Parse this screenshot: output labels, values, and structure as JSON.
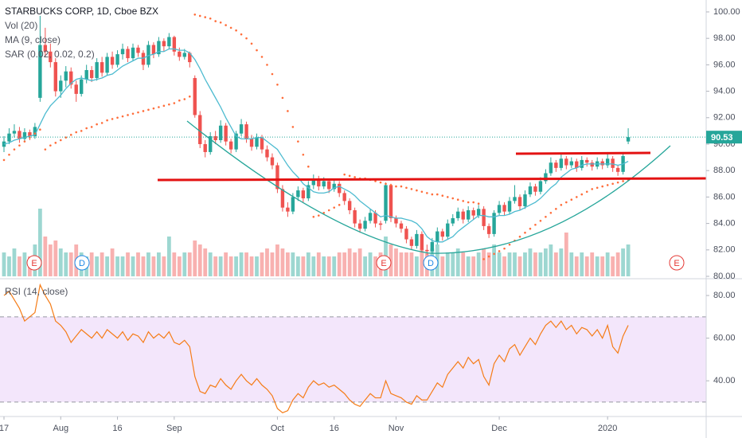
{
  "chart_data": {
    "type": "candlestick",
    "title": "STARBUCKS CORP, 1D, Cboe BZX",
    "indicators": [
      "Vol (20)",
      "MA (9, close)",
      "SAR (0.02, 0.02, 0.2)"
    ],
    "colors": {
      "up": "#26a69a",
      "down": "#ef5350",
      "ma": "#4dbbd0",
      "sar": "#ff6d3a",
      "rsi": "#f57c17",
      "band": "#f3e6fb"
    },
    "categories": [
      "17",
      null,
      null,
      null,
      null,
      null,
      null,
      null,
      null,
      null,
      null,
      "Aug",
      null,
      null,
      null,
      null,
      null,
      null,
      null,
      null,
      null,
      null,
      "16",
      null,
      null,
      null,
      null,
      null,
      null,
      null,
      null,
      null,
      null,
      "Sep",
      null,
      null,
      null,
      null,
      null,
      null,
      null,
      null,
      null,
      null,
      null,
      null,
      null,
      null,
      null,
      null,
      null,
      null,
      null,
      "Oct",
      null,
      null,
      null,
      null,
      null,
      null,
      null,
      null,
      null,
      null,
      "16",
      null,
      null,
      null,
      null,
      null,
      null,
      null,
      null,
      null,
      null,
      null,
      "Nov",
      null,
      null,
      null,
      null,
      null,
      null,
      null,
      null,
      null,
      null,
      null,
      null,
      null,
      null,
      null,
      null,
      null,
      null,
      null,
      "Dec",
      null,
      null,
      null,
      null,
      null,
      null,
      null,
      null,
      null,
      null,
      null,
      null,
      null,
      null,
      null,
      null,
      null,
      null,
      null,
      null,
      "2020",
      null,
      null,
      null,
      null
    ],
    "ohlc": [
      [
        89.8,
        90.6,
        89.4,
        90.2
      ],
      [
        90.2,
        91.2,
        90.0,
        90.8
      ],
      [
        90.8,
        91.5,
        90.5,
        91.0
      ],
      [
        91.0,
        91.3,
        90.1,
        90.4
      ],
      [
        90.4,
        91.2,
        90.2,
        90.9
      ],
      [
        90.9,
        91.1,
        90.3,
        90.6
      ],
      [
        90.6,
        91.6,
        90.4,
        91.3
      ],
      [
        93.5,
        99.7,
        93.2,
        97.5
      ],
      [
        97.5,
        98.8,
        96.6,
        97.0
      ],
      [
        97.0,
        97.6,
        95.8,
        96.2
      ],
      [
        96.2,
        96.5,
        93.6,
        94.0
      ],
      [
        94.0,
        95.2,
        93.5,
        94.8
      ],
      [
        94.8,
        95.9,
        94.3,
        95.5
      ],
      [
        95.5,
        95.8,
        94.2,
        94.5
      ],
      [
        94.5,
        94.8,
        93.2,
        93.8
      ],
      [
        93.8,
        95.2,
        93.6,
        94.9
      ],
      [
        94.9,
        96.0,
        94.6,
        95.6
      ],
      [
        95.6,
        95.9,
        94.7,
        95.0
      ],
      [
        95.0,
        96.5,
        94.8,
        96.2
      ],
      [
        96.2,
        96.6,
        95.1,
        95.4
      ],
      [
        95.4,
        96.9,
        95.2,
        96.6
      ],
      [
        96.6,
        97.0,
        95.7,
        96.0
      ],
      [
        96.0,
        97.1,
        95.8,
        96.8
      ],
      [
        96.8,
        97.6,
        96.4,
        97.2
      ],
      [
        97.2,
        97.4,
        96.2,
        96.5
      ],
      [
        96.5,
        97.6,
        96.3,
        97.3
      ],
      [
        97.3,
        97.5,
        96.6,
        96.9
      ],
      [
        96.9,
        97.1,
        95.6,
        96.0
      ],
      [
        96.0,
        97.8,
        95.8,
        97.5
      ],
      [
        97.5,
        97.7,
        96.5,
        96.8
      ],
      [
        96.8,
        98.1,
        96.6,
        97.8
      ],
      [
        97.8,
        98.0,
        97.0,
        97.4
      ],
      [
        97.4,
        98.4,
        97.2,
        98.1
      ],
      [
        98.1,
        98.2,
        96.7,
        97.0
      ],
      [
        97.0,
        97.3,
        96.3,
        96.6
      ],
      [
        96.6,
        97.2,
        96.4,
        96.9
      ],
      [
        96.9,
        97.0,
        95.8,
        96.2
      ],
      [
        95.0,
        95.2,
        92.0,
        92.2
      ],
      [
        92.2,
        92.5,
        89.7,
        90.0
      ],
      [
        90.0,
        90.3,
        89.0,
        89.4
      ],
      [
        89.4,
        90.9,
        89.2,
        90.6
      ],
      [
        90.6,
        91.0,
        90.0,
        90.3
      ],
      [
        90.3,
        91.8,
        90.1,
        91.4
      ],
      [
        91.4,
        91.6,
        89.9,
        90.2
      ],
      [
        90.2,
        90.4,
        89.3,
        89.6
      ],
      [
        89.6,
        91.0,
        89.4,
        90.8
      ],
      [
        90.8,
        91.9,
        90.6,
        91.5
      ],
      [
        91.5,
        91.7,
        90.1,
        90.4
      ],
      [
        90.4,
        90.7,
        89.5,
        89.8
      ],
      [
        89.8,
        90.8,
        89.6,
        90.5
      ],
      [
        90.5,
        90.7,
        89.3,
        89.6
      ],
      [
        89.6,
        89.9,
        88.7,
        89.0
      ],
      [
        89.0,
        89.3,
        88.1,
        88.4
      ],
      [
        88.4,
        88.6,
        86.3,
        86.6
      ],
      [
        86.6,
        86.9,
        84.9,
        85.2
      ],
      [
        85.2,
        85.6,
        84.5,
        84.9
      ],
      [
        84.9,
        86.3,
        84.7,
        86.0
      ],
      [
        86.0,
        86.8,
        85.7,
        86.5
      ],
      [
        86.5,
        86.7,
        85.6,
        85.9
      ],
      [
        85.9,
        87.2,
        85.7,
        86.9
      ],
      [
        86.9,
        87.7,
        86.6,
        87.4
      ],
      [
        87.4,
        87.6,
        86.5,
        86.8
      ],
      [
        86.8,
        87.5,
        86.6,
        87.2
      ],
      [
        87.2,
        87.4,
        86.3,
        86.6
      ],
      [
        86.6,
        87.3,
        86.4,
        87.0
      ],
      [
        87.0,
        87.2,
        86.0,
        86.3
      ],
      [
        86.3,
        86.5,
        85.4,
        85.7
      ],
      [
        85.7,
        85.9,
        84.7,
        85.0
      ],
      [
        85.0,
        85.2,
        83.7,
        84.0
      ],
      [
        84.0,
        84.3,
        83.3,
        83.6
      ],
      [
        83.6,
        84.5,
        83.4,
        84.2
      ],
      [
        84.2,
        85.1,
        84.0,
        84.8
      ],
      [
        84.8,
        85.0,
        83.7,
        84.0
      ],
      [
        84.0,
        84.2,
        83.5,
        83.9
      ],
      [
        84.2,
        87.1,
        84.0,
        86.9
      ],
      [
        86.9,
        87.0,
        84.1,
        84.4
      ],
      [
        84.4,
        84.6,
        83.7,
        84.0
      ],
      [
        84.0,
        84.2,
        83.3,
        83.6
      ],
      [
        83.6,
        83.8,
        82.5,
        82.8
      ],
      [
        82.8,
        83.0,
        82.0,
        82.3
      ],
      [
        82.3,
        83.5,
        82.1,
        83.2
      ],
      [
        83.2,
        83.4,
        81.8,
        82.0
      ],
      [
        82.0,
        82.4,
        81.6,
        81.9
      ],
      [
        81.9,
        82.9,
        81.7,
        82.6
      ],
      [
        82.6,
        83.7,
        82.4,
        83.4
      ],
      [
        83.4,
        83.6,
        82.7,
        83.0
      ],
      [
        83.0,
        84.3,
        82.8,
        84.0
      ],
      [
        84.0,
        84.7,
        83.8,
        84.4
      ],
      [
        84.4,
        85.2,
        84.2,
        84.9
      ],
      [
        84.9,
        85.1,
        84.0,
        84.3
      ],
      [
        84.3,
        85.3,
        84.1,
        85.0
      ],
      [
        85.0,
        85.2,
        84.3,
        84.6
      ],
      [
        84.6,
        85.4,
        84.4,
        85.1
      ],
      [
        85.1,
        85.3,
        83.5,
        83.8
      ],
      [
        83.8,
        84.0,
        82.9,
        83.2
      ],
      [
        83.2,
        85.0,
        83.0,
        84.8
      ],
      [
        84.8,
        85.7,
        84.6,
        85.4
      ],
      [
        85.4,
        85.6,
        84.6,
        84.9
      ],
      [
        84.9,
        86.0,
        84.7,
        85.7
      ],
      [
        85.7,
        86.9,
        85.5,
        86.0
      ],
      [
        86.0,
        86.2,
        85.0,
        85.3
      ],
      [
        85.3,
        86.5,
        85.1,
        86.2
      ],
      [
        86.2,
        87.1,
        86.0,
        86.8
      ],
      [
        86.8,
        87.0,
        86.1,
        86.4
      ],
      [
        86.4,
        87.5,
        86.2,
        87.2
      ],
      [
        87.2,
        88.1,
        87.0,
        87.8
      ],
      [
        87.8,
        89.0,
        87.6,
        88.6
      ],
      [
        88.6,
        88.8,
        87.9,
        88.2
      ],
      [
        88.2,
        89.3,
        88.0,
        88.9
      ],
      [
        88.9,
        89.1,
        88.1,
        88.4
      ],
      [
        88.4,
        89.0,
        88.2,
        88.7
      ],
      [
        88.7,
        88.9,
        87.9,
        88.2
      ],
      [
        88.2,
        89.1,
        88.0,
        88.8
      ],
      [
        88.8,
        89.0,
        88.3,
        88.6
      ],
      [
        88.6,
        88.8,
        88.0,
        88.3
      ],
      [
        88.3,
        89.0,
        88.1,
        88.7
      ],
      [
        88.7,
        88.9,
        88.1,
        88.4
      ],
      [
        88.4,
        89.4,
        88.2,
        88.9
      ],
      [
        88.9,
        89.1,
        87.9,
        88.2
      ],
      [
        88.2,
        88.4,
        87.6,
        87.9
      ],
      [
        87.9,
        89.4,
        87.7,
        89.1
      ],
      [
        90.2,
        91.2,
        90.0,
        90.53
      ]
    ],
    "ma": [
      90.0,
      90.1,
      90.3,
      90.4,
      90.5,
      90.6,
      90.7,
      91.5,
      92.3,
      92.9,
      93.3,
      93.7,
      94.2,
      94.6,
      94.9,
      95.0,
      94.9,
      94.8,
      94.9,
      95.0,
      95.2,
      95.3,
      95.6,
      95.9,
      96.1,
      96.3,
      96.5,
      96.5,
      96.7,
      96.8,
      97.0,
      97.0,
      97.2,
      97.2,
      97.1,
      97.1,
      96.9,
      96.4,
      95.7,
      94.9,
      94.2,
      93.5,
      92.8,
      92.0,
      91.3,
      90.6,
      90.4,
      90.4,
      90.4,
      90.5,
      90.5,
      90.2,
      89.9,
      89.6,
      89.0,
      88.4,
      87.9,
      87.5,
      87.0,
      86.7,
      86.4,
      86.3,
      86.3,
      86.4,
      86.7,
      86.8,
      86.6,
      86.4,
      86.1,
      85.7,
      85.4,
      85.1,
      84.8,
      84.5,
      84.6,
      84.5,
      84.4,
      84.4,
      84.3,
      84.2,
      84.0,
      83.6,
      83.0,
      82.7,
      82.6,
      82.6,
      82.8,
      83.0,
      83.4,
      83.7,
      84.0,
      84.3,
      84.6,
      84.6,
      84.5,
      84.5,
      84.6,
      84.6,
      84.7,
      84.9,
      85.0,
      85.2,
      85.4,
      85.6,
      85.9,
      86.3,
      86.7,
      87.0,
      87.5,
      87.8,
      88.1,
      88.2,
      88.4,
      88.5,
      88.5,
      88.5,
      88.5,
      88.5,
      88.5,
      88.4,
      88.5,
      88.7
    ],
    "sar": [
      88.8,
      89.2,
      89.6,
      89.9,
      90.2,
      90.5,
      90.8,
      91.1,
      89.6,
      89.9,
      90.1,
      90.3,
      90.5,
      90.7,
      90.9,
      91.0,
      91.2,
      91.3,
      91.5,
      91.6,
      91.8,
      91.9,
      92.0,
      92.1,
      92.2,
      92.3,
      92.4,
      92.5,
      92.6,
      92.7,
      92.8,
      92.9,
      93.0,
      93.1,
      93.3,
      93.4,
      93.6,
      99.8,
      99.7,
      99.6,
      99.5,
      99.3,
      99.2,
      99.0,
      98.8,
      98.6,
      98.3,
      98.0,
      97.6,
      97.1,
      96.6,
      96.0,
      95.3,
      94.5,
      93.5,
      92.5,
      91.3,
      90.2,
      89.2,
      88.3,
      84.5,
      84.6,
      84.8,
      85.0,
      85.2,
      85.4,
      87.7,
      87.6,
      87.5,
      87.4,
      87.4,
      87.3,
      87.2,
      87.1,
      87.0,
      86.9,
      86.8,
      86.8,
      86.7,
      86.6,
      86.5,
      86.4,
      86.3,
      86.2,
      86.2,
      86.1,
      86.0,
      85.9,
      85.8,
      85.7,
      85.6,
      85.6,
      85.5,
      81.3,
      81.5,
      81.7,
      81.9,
      82.1,
      82.4,
      82.7,
      83.0,
      83.3,
      83.6,
      83.9,
      84.2,
      84.5,
      84.8,
      85.1,
      85.4,
      85.6,
      85.8,
      86.0,
      86.2,
      86.4,
      86.6,
      86.7,
      86.8,
      86.9,
      87.0,
      87.1,
      87.2,
      87.3
    ],
    "volume": [
      6,
      5,
      7,
      5,
      6,
      5,
      8,
      17,
      10,
      8,
      9,
      7,
      6,
      6,
      8,
      6,
      5,
      6,
      5,
      6,
      5,
      7,
      5,
      5,
      6,
      5,
      6,
      5,
      6,
      5,
      6,
      5,
      10,
      6,
      5,
      6,
      6,
      9,
      8,
      7,
      6,
      5,
      5,
      6,
      5,
      5,
      6,
      6,
      5,
      5,
      6,
      7,
      6,
      8,
      7,
      6,
      6,
      5,
      5,
      6,
      5,
      6,
      5,
      5,
      5,
      6,
      6,
      7,
      6,
      7,
      5,
      6,
      5,
      6,
      10,
      8,
      7,
      6,
      6,
      6,
      5,
      7,
      6,
      7,
      8,
      5,
      6,
      6,
      7,
      6,
      5,
      5,
      6,
      7,
      6,
      8,
      6,
      5,
      6,
      6,
      5,
      6,
      7,
      6,
      6,
      7,
      8,
      6,
      7,
      11,
      6,
      5,
      6,
      5,
      6,
      5,
      5,
      6,
      5,
      6,
      7,
      8
    ],
    "ylim": [
      80,
      100.6
    ],
    "yticks": [
      {
        "value": 100,
        "label": "100.00"
      },
      {
        "value": 98,
        "label": "98.00"
      },
      {
        "value": 96,
        "label": "96.00"
      },
      {
        "value": 94,
        "label": "94.00"
      },
      {
        "value": 92,
        "label": "92.00"
      },
      {
        "value": 90,
        "label": "90.00"
      },
      {
        "value": 88,
        "label": "88.00"
      },
      {
        "value": 86,
        "label": "86.00"
      },
      {
        "value": 84,
        "label": "84.00"
      },
      {
        "value": 82,
        "label": "82.00"
      },
      {
        "value": 80,
        "label": "80.00"
      }
    ],
    "events": [
      {
        "label": "E"
      },
      {
        "label": "D"
      },
      {
        "label": "E"
      },
      {
        "label": "D"
      },
      {
        "label": "E"
      }
    ],
    "rsi": {
      "name": "RSI (14, close)",
      "values": [
        80,
        82,
        78,
        74,
        68,
        70,
        72,
        85,
        80,
        76,
        68,
        66,
        63,
        58,
        61,
        64,
        62,
        60,
        63,
        60,
        64,
        62,
        60,
        63,
        59,
        62,
        61,
        58,
        63,
        60,
        62,
        60,
        63,
        58,
        57,
        59,
        56,
        42,
        35,
        34,
        38,
        37,
        41,
        38,
        36,
        40,
        43,
        40,
        38,
        41,
        38,
        36,
        33,
        27,
        25,
        26,
        31,
        34,
        32,
        37,
        40,
        38,
        39,
        37,
        38,
        36,
        34,
        31,
        29,
        28,
        31,
        34,
        32,
        32,
        40,
        34,
        33,
        32,
        30,
        29,
        33,
        31,
        31,
        35,
        39,
        37,
        43,
        46,
        49,
        46,
        51,
        48,
        50,
        42,
        38,
        48,
        52,
        49,
        55,
        57,
        52,
        56,
        60,
        57,
        62,
        66,
        68,
        65,
        68,
        64,
        66,
        62,
        65,
        64,
        61,
        64,
        60,
        66,
        56,
        53,
        61,
        66
      ],
      "ylim": [
        24,
        86
      ],
      "yticks": [
        {
          "value": 80,
          "label": "80.00"
        },
        {
          "value": 60,
          "label": "60.00"
        },
        {
          "value": 40,
          "label": "40.00"
        }
      ],
      "band": [
        30,
        70
      ]
    }
  }
}
